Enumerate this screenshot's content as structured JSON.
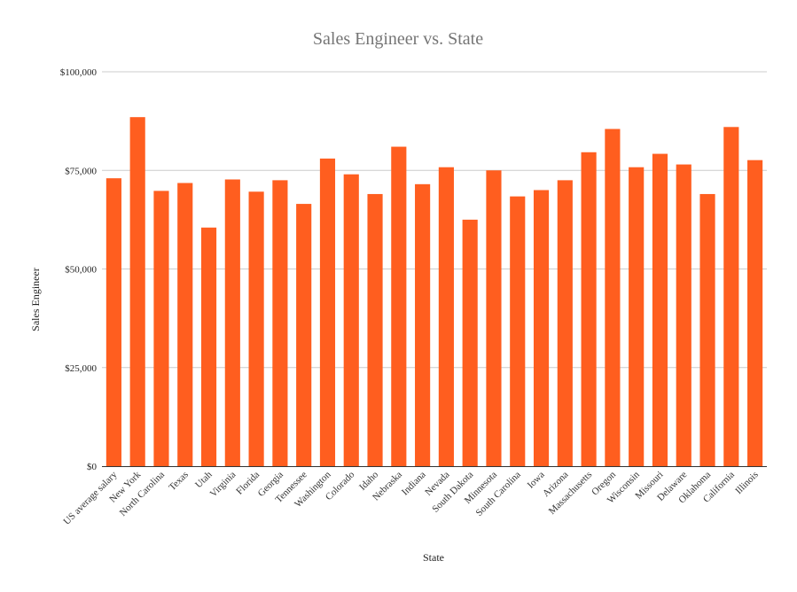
{
  "chart_data": {
    "type": "bar",
    "title": "Sales Engineer vs. State",
    "xlabel": "State",
    "ylabel": "Sales Engineer",
    "ylim": [
      0,
      100000
    ],
    "yticks": [
      0,
      25000,
      50000,
      75000,
      100000
    ],
    "ytick_labels": [
      "$0",
      "$25,000",
      "$50,000",
      "$75,000",
      "$100,000"
    ],
    "grid": true,
    "legend": "none",
    "bar_color": "#ff5e1f",
    "categories": [
      "US average salary",
      "New York",
      "North Carolina",
      "Texas",
      "Utah",
      "Virginia",
      "Florida",
      "Georgia",
      "Tennessee",
      "Washington",
      "Colorado",
      "Idaho",
      "Nebraska",
      "Indiana",
      "Nevada",
      "South Dakota",
      "Minnesota",
      "South Carolina",
      "Iowa",
      "Arizona",
      "Massachusetts",
      "Oregon",
      "Wisconsin",
      "Missouri",
      "Delaware",
      "Oklahoma",
      "California",
      "Illinois"
    ],
    "values": [
      73000,
      88500,
      69800,
      71800,
      60500,
      72700,
      69600,
      72500,
      66500,
      78000,
      74000,
      69000,
      81000,
      71500,
      75800,
      62500,
      75000,
      68400,
      70000,
      72500,
      79600,
      85500,
      75800,
      79200,
      76500,
      69000,
      86000,
      77600
    ]
  }
}
